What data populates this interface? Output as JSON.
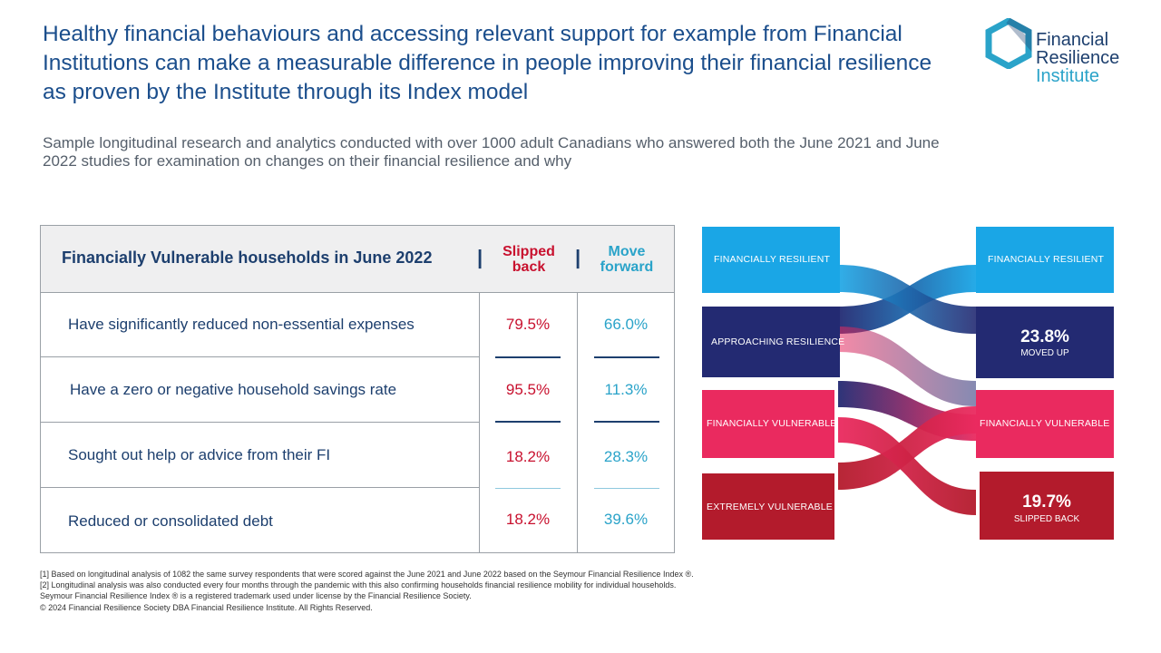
{
  "header": {
    "title": "Healthy financial behaviours and accessing relevant support for example from Financial Institutions can make a measurable difference in people improving their financial resilience as proven by the Institute through its Index model",
    "subtitle": "Sample longitudinal research and analytics conducted with over 1000 adult Canadians who answered both the June 2021 and June 2022 studies for examination on changes on their financial resilience and why"
  },
  "logo": {
    "line1": "Financial",
    "line2": "Resilience",
    "line3": "Institute",
    "colors": {
      "dark": "#1d3f6e",
      "accent": "#2aa3c9"
    }
  },
  "table": {
    "heading": "Financially Vulnerable households in June 2022",
    "separator": "|",
    "col_slipped": "Slipped back",
    "col_forward": "Move forward",
    "rows": [
      {
        "label": "Have significantly reduced non-essential expenses",
        "slipped": "79.5%",
        "forward": "66.0%"
      },
      {
        "label": "Have a zero or negative household savings rate",
        "slipped": "95.5%",
        "forward": "11.3%"
      },
      {
        "label": "Sought out help or advice from their FI",
        "slipped": "18.2%",
        "forward": "28.3%"
      },
      {
        "label": "Reduced or consolidated debt",
        "slipped": "18.2%",
        "forward": "39.6%"
      }
    ]
  },
  "diagram": {
    "left": {
      "resilient": "FINANCIALLY RESILIENT",
      "approaching": "APPROACHING RESILIENCE",
      "vulnerable": "FINANCIALLY VULNERABLE",
      "extreme": "EXTREMELY VULNERABLE"
    },
    "right": {
      "resilient": "FINANCIALLY RESILIENT",
      "moved_up_pct": "23.8%",
      "moved_up_label": "MOVED UP",
      "vulnerable": "FINANCIALLY VULNERABLE",
      "slipped_pct": "19.7%",
      "slipped_label": "SLIPPED BACK"
    },
    "colors": {
      "resilient": "#1aa6e6",
      "approaching": "#232a72",
      "vulnerable": "#ea2a5f",
      "extreme": "#b31b2c"
    }
  },
  "footnotes": [
    "[1] Based on longitudinal analysis of 1082 the same survey respondents that were scored against the June 2021 and June 2022 based on the Seymour Financial Resilience Index ®.",
    "[2] Longitudinal analysis was also conducted every four months through the pandemic with this also confirming households financial resilience mobility for individual households.",
    "Seymour Financial Resilience Index ® is a registered trademark used under license by the Financial Resilience Society.",
    "© 2024 Financial Resilience Society DBA Financial Resilience Institute. All Rights Reserved."
  ]
}
